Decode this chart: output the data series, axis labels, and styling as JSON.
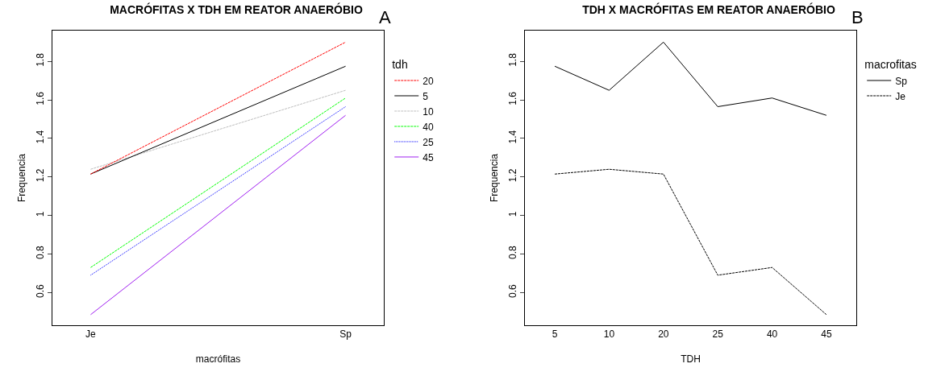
{
  "chart_data": [
    {
      "type": "line",
      "title": "MACRÓFITAS X TDH EM REATOR ANAERÓBIO",
      "xlabel": "macrófitas",
      "ylabel": "Frequencia",
      "legend_title": "tdh",
      "annotations": [
        "A"
      ],
      "categories": [
        "Je",
        "Sp"
      ],
      "series": [
        {
          "name": "20",
          "color": "#ff0000",
          "line_style": "dashed",
          "values": [
            1.215,
            1.9
          ]
        },
        {
          "name": "5",
          "color": "#000000",
          "line_style": "solid",
          "values": [
            1.215,
            1.775
          ]
        },
        {
          "name": "10",
          "color": "#bebebe",
          "line_style": "dashed",
          "values": [
            1.24,
            1.65
          ]
        },
        {
          "name": "40",
          "color": "#00ff00",
          "line_style": "dashed",
          "values": [
            0.73,
            1.61
          ]
        },
        {
          "name": "25",
          "color": "#0000ff",
          "line_style": "dotted",
          "values": [
            0.69,
            1.565
          ]
        },
        {
          "name": "45",
          "color": "#a020f0",
          "line_style": "solid",
          "values": [
            0.485,
            1.52
          ]
        }
      ],
      "ylim": [
        0.43,
        1.96
      ],
      "yticks": [
        0.6,
        0.8,
        1.0,
        1.2,
        1.4,
        1.6,
        1.8
      ],
      "grid": false,
      "legend": "right",
      "marker": "none"
    },
    {
      "type": "line",
      "title": "TDH X MACRÓFITAS EM REATOR ANAERÓBIO",
      "xlabel": "TDH",
      "ylabel": "Frequencia",
      "legend_title": "macrofitas",
      "annotations": [
        "B"
      ],
      "categories": [
        "5",
        "10",
        "20",
        "25",
        "40",
        "45"
      ],
      "series": [
        {
          "name": "Sp",
          "color": "#000000",
          "line_style": "solid",
          "values": [
            1.775,
            1.65,
            1.9,
            1.565,
            1.61,
            1.52
          ]
        },
        {
          "name": "Je",
          "color": "#000000",
          "line_style": "dashed",
          "values": [
            1.215,
            1.24,
            1.215,
            0.69,
            0.73,
            0.485
          ]
        }
      ],
      "ylim": [
        0.43,
        1.96
      ],
      "yticks": [
        0.6,
        0.8,
        1.0,
        1.2,
        1.4,
        1.6,
        1.8
      ],
      "grid": false,
      "legend": "right",
      "marker": "none"
    }
  ]
}
